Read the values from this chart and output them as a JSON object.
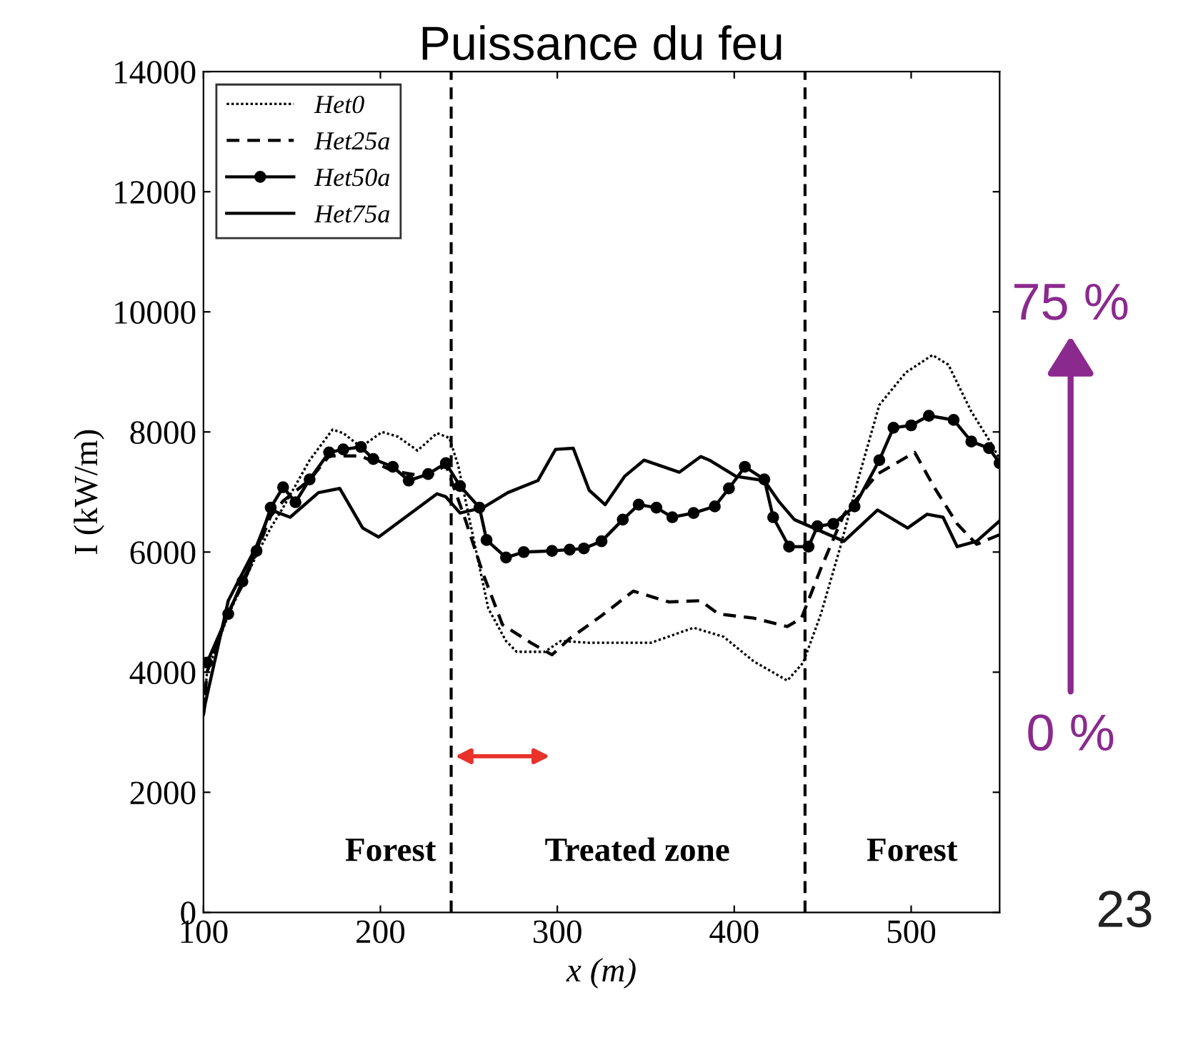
{
  "chart_data": {
    "type": "line",
    "title": "Puissance du feu",
    "xlabel": "x (m)",
    "ylabel": "I (kW/m)",
    "xlim": [
      100,
      550
    ],
    "xticks": [
      100,
      200,
      300,
      400,
      500
    ],
    "ylim": [
      0,
      14000
    ],
    "yticks": [
      0,
      2000,
      4000,
      6000,
      8000,
      10000,
      12000,
      14000
    ],
    "grid": false,
    "legend": "top left",
    "series": [
      {
        "name": "Het0",
        "color": "#000000",
        "line_style": "dotted",
        "marker": "none",
        "x": [
          100,
          102,
          114,
          122,
          130,
          138,
          145,
          160,
          173,
          179,
          189,
          201,
          210,
          221,
          232,
          239,
          244,
          252,
          261,
          271,
          277,
          293,
          302,
          318,
          353,
          377,
          394,
          411,
          430,
          439,
          449,
          460,
          470,
          482,
          497,
          512,
          521,
          534,
          545,
          550
        ],
        "values": [
          3300,
          4000,
          4950,
          5450,
          5950,
          6400,
          6740,
          7530,
          8040,
          7980,
          7750,
          8000,
          7920,
          7690,
          7980,
          7900,
          7440,
          6310,
          5060,
          4520,
          4340,
          4340,
          4520,
          4490,
          4490,
          4740,
          4590,
          4180,
          3860,
          4160,
          4970,
          6090,
          7210,
          8450,
          8990,
          9280,
          9120,
          8340,
          7820,
          7550
        ]
      },
      {
        "name": "Het25a",
        "color": "#000000",
        "line_style": "dashed",
        "marker": "none",
        "x": [
          100,
          102,
          114,
          122,
          130,
          138,
          145,
          160,
          171,
          189,
          207,
          227,
          237,
          248,
          258,
          269,
          285,
          297,
          307,
          325,
          343,
          363,
          381,
          391,
          411,
          430,
          438,
          449,
          462,
          481,
          502,
          513,
          526,
          537,
          550
        ],
        "values": [
          3300,
          4000,
          5000,
          5450,
          6000,
          6600,
          6850,
          7200,
          7600,
          7600,
          7350,
          7250,
          7450,
          6540,
          5640,
          4790,
          4490,
          4290,
          4560,
          4940,
          5350,
          5170,
          5190,
          4970,
          4900,
          4760,
          4900,
          5730,
          6630,
          7300,
          7660,
          7080,
          6470,
          6130,
          6290
        ]
      },
      {
        "name": "Het50a",
        "color": "#000000",
        "line_style": "solid",
        "marker": "circle",
        "x": [
          102,
          114,
          122,
          130,
          138,
          145,
          152,
          160,
          171,
          179,
          189,
          196,
          207,
          216,
          227,
          237,
          245,
          256,
          260,
          271,
          281,
          297,
          307,
          315,
          325,
          337,
          346,
          356,
          365,
          377,
          389,
          397,
          406,
          417,
          422,
          431,
          442,
          447,
          456,
          468,
          482,
          490,
          500,
          510,
          524,
          534,
          544,
          550
        ],
        "values": [
          4160,
          4970,
          5510,
          6020,
          6740,
          7080,
          6830,
          7210,
          7660,
          7710,
          7750,
          7550,
          7420,
          7190,
          7300,
          7480,
          7100,
          6740,
          6200,
          5910,
          6000,
          6020,
          6040,
          6060,
          6180,
          6540,
          6790,
          6740,
          6580,
          6650,
          6760,
          7060,
          7420,
          7210,
          6580,
          6090,
          6090,
          6430,
          6470,
          6760,
          7530,
          8070,
          8110,
          8270,
          8200,
          7840,
          7730,
          7480
        ]
      },
      {
        "name": "Het75a",
        "color": "#000000",
        "line_style": "solid",
        "marker": "none",
        "x": [
          100,
          101,
          114,
          130,
          138,
          149,
          165,
          177,
          190,
          199,
          232,
          237,
          245,
          258,
          272,
          289,
          299,
          309,
          318,
          327,
          338,
          349,
          369,
          381,
          386,
          401,
          417,
          425,
          434,
          462,
          481,
          498,
          509,
          518,
          526,
          537,
          550
        ],
        "values": [
          3300,
          3480,
          5190,
          6100,
          6700,
          6580,
          6990,
          7060,
          6400,
          6250,
          6970,
          6920,
          6650,
          6740,
          6990,
          7190,
          7710,
          7730,
          7030,
          6790,
          7260,
          7530,
          7330,
          7590,
          7530,
          7260,
          7190,
          6850,
          6540,
          6180,
          6700,
          6400,
          6630,
          6580,
          6090,
          6180,
          6520
        ]
      }
    ],
    "ref_lines": [
      {
        "axis": "x",
        "value": 240,
        "color": "#000000",
        "line_style": "dashed"
      },
      {
        "axis": "x",
        "value": 440,
        "color": "#000000",
        "line_style": "dashed"
      }
    ],
    "annotations": [
      "Forest",
      "Treated zone",
      "Forest",
      "75 %",
      "0 %",
      "23"
    ]
  }
}
